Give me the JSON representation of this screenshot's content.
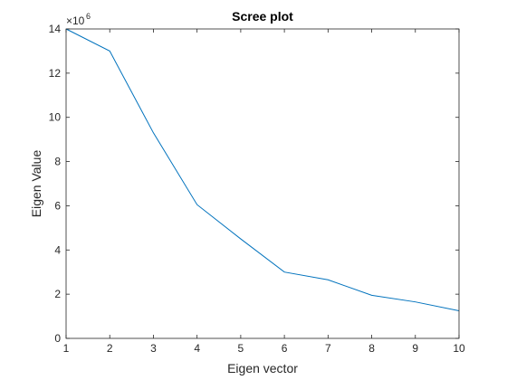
{
  "chart_data": {
    "type": "line",
    "title": "Scree plot",
    "xlabel": "Eigen vector",
    "ylabel": "Eigen Value",
    "y_exponent": {
      "base": "×10",
      "power": "6"
    },
    "xlim": [
      1,
      10
    ],
    "ylim": [
      0,
      14
    ],
    "xticks": [
      "1",
      "2",
      "3",
      "4",
      "5",
      "6",
      "7",
      "8",
      "9",
      "10"
    ],
    "yticks": [
      "0",
      "2",
      "4",
      "6",
      "8",
      "10",
      "12",
      "14"
    ],
    "grid": false,
    "series": [
      {
        "x": [
          1,
          2,
          3,
          4,
          5,
          6,
          7,
          8,
          9,
          10
        ],
        "y": [
          14.0,
          13.0,
          9.3,
          6.05,
          4.5,
          3.0,
          2.65,
          1.95,
          1.65,
          1.25
        ],
        "color": "#0072BD"
      }
    ]
  }
}
